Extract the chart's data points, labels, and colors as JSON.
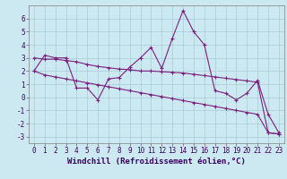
{
  "xlabel": "Windchill (Refroidissement éolien,°C)",
  "bg_color": "#cce8f0",
  "line_color": "#7b2080",
  "grid_color": "#a8ccd8",
  "xlim": [
    -0.5,
    23.5
  ],
  "ylim": [
    -3.5,
    7.0
  ],
  "xticks": [
    0,
    1,
    2,
    3,
    4,
    5,
    6,
    7,
    8,
    9,
    10,
    11,
    12,
    13,
    14,
    15,
    16,
    17,
    18,
    19,
    20,
    21,
    22,
    23
  ],
  "yticks": [
    -3,
    -2,
    -1,
    0,
    1,
    2,
    3,
    4,
    5,
    6
  ],
  "series1_x": [
    0,
    1,
    2,
    3,
    4,
    5,
    6,
    7,
    8,
    9,
    10,
    11,
    12,
    13,
    14,
    15,
    16,
    17,
    18,
    19,
    20,
    21,
    22,
    23
  ],
  "series1_y": [
    2.0,
    3.2,
    3.0,
    3.0,
    0.7,
    0.7,
    -0.2,
    1.4,
    1.5,
    2.3,
    3.0,
    3.8,
    2.2,
    4.5,
    6.6,
    5.0,
    4.0,
    0.5,
    0.3,
    -0.2,
    0.3,
    1.3,
    -1.3,
    -2.7
  ],
  "series2_x": [
    0,
    1,
    2,
    3,
    4,
    5,
    6,
    7,
    8,
    9,
    10,
    11,
    12,
    13,
    14,
    15,
    16,
    17,
    18,
    19,
    20,
    21,
    22,
    23
  ],
  "series2_y": [
    3.0,
    2.9,
    2.9,
    2.8,
    2.7,
    2.5,
    2.35,
    2.25,
    2.15,
    2.1,
    2.0,
    2.0,
    1.95,
    1.9,
    1.85,
    1.75,
    1.65,
    1.55,
    1.45,
    1.35,
    1.25,
    1.15,
    -2.7,
    -2.8
  ],
  "series3_x": [
    0,
    1,
    2,
    3,
    4,
    5,
    6,
    7,
    8,
    9,
    10,
    11,
    12,
    13,
    14,
    15,
    16,
    17,
    18,
    19,
    20,
    21,
    22,
    23
  ],
  "series3_y": [
    2.0,
    1.7,
    1.55,
    1.4,
    1.25,
    1.1,
    0.95,
    0.8,
    0.65,
    0.5,
    0.35,
    0.2,
    0.05,
    -0.1,
    -0.25,
    -0.4,
    -0.55,
    -0.7,
    -0.85,
    -1.0,
    -1.15,
    -1.3,
    -2.7,
    -2.8
  ],
  "marker": "+",
  "markersize": 3,
  "linewidth": 0.8,
  "xlabel_fontsize": 6.5,
  "tick_fontsize": 5.5
}
